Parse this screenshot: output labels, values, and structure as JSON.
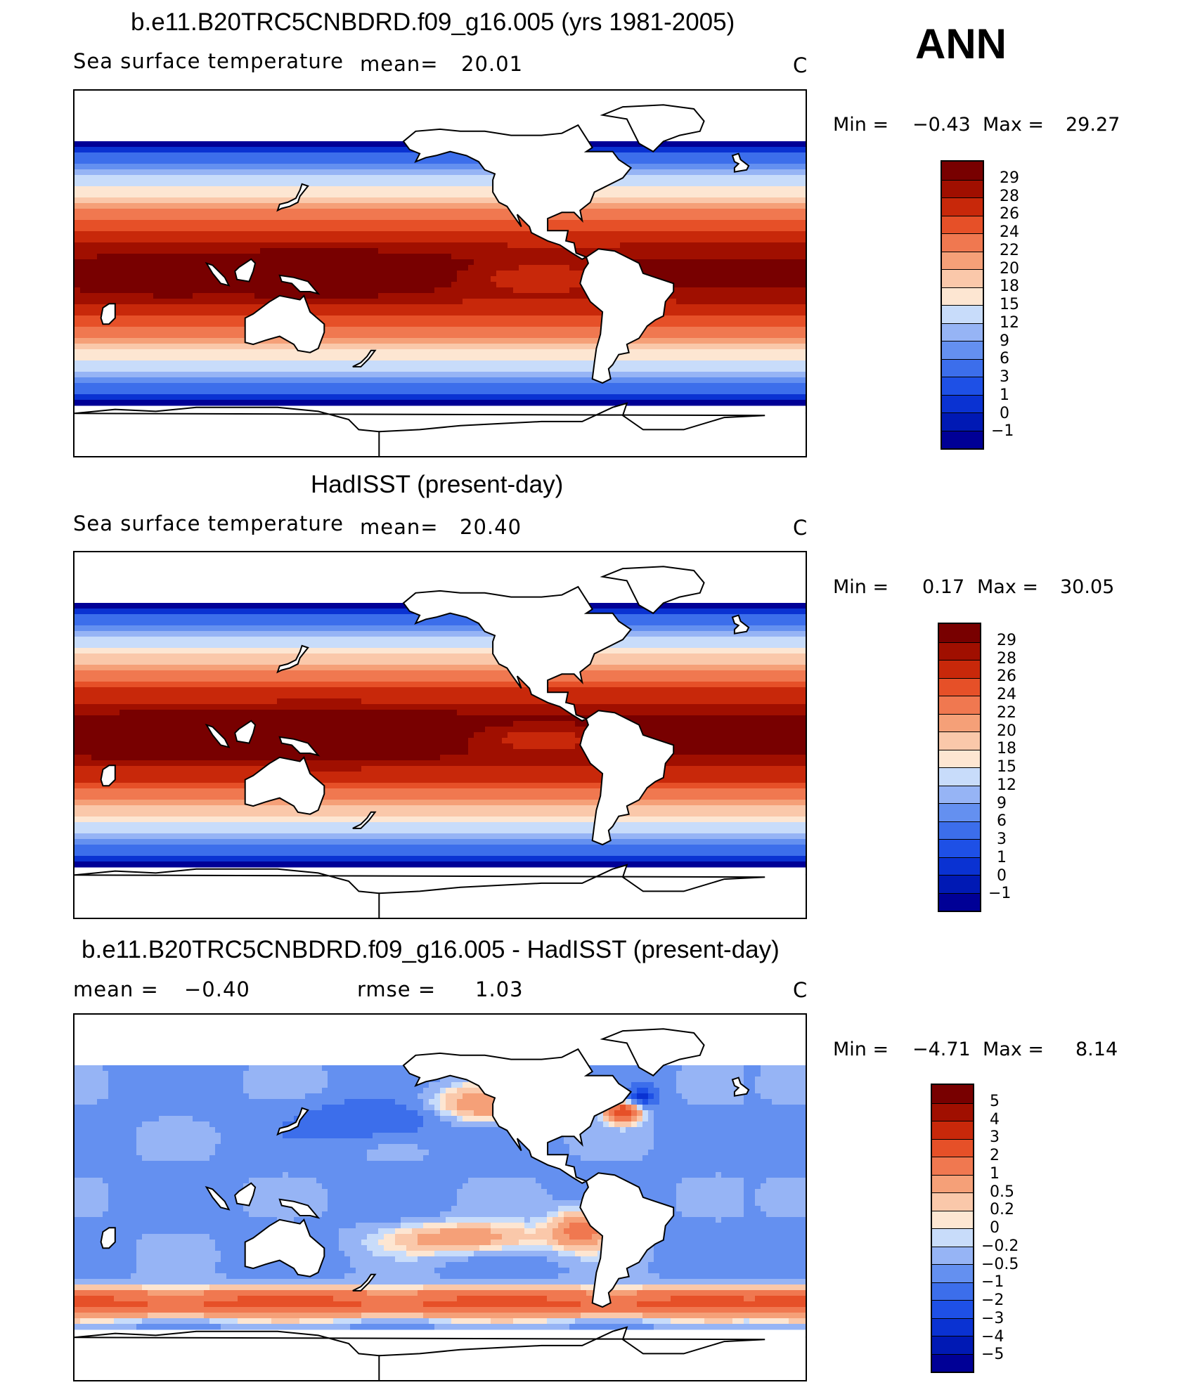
{
  "season": "ANN",
  "units": "C",
  "panels": [
    {
      "title": "b.e11.B20TRC5CNBDRD.f09_g16.005 (yrs 1981-2005)",
      "variable": "Sea surface temperature",
      "stat_label": "mean=",
      "stat_value": "20.01",
      "units": "C",
      "min_label": "Min =",
      "min_value": "−0.43",
      "max_label": "Max =",
      "max_value": "29.27",
      "legend": [
        "29",
        "28",
        "26",
        "24",
        "22",
        "20",
        "18",
        "15",
        "12",
        "9",
        "6",
        "3",
        "1",
        "0",
        "−1"
      ]
    },
    {
      "title": "HadISST (present-day)",
      "variable": "Sea surface temperature",
      "stat_label": "mean=",
      "stat_value": "20.40",
      "units": "C",
      "min_label": "Min =",
      "min_value": "0.17",
      "max_label": "Max =",
      "max_value": "30.05",
      "legend": [
        "29",
        "28",
        "26",
        "24",
        "22",
        "20",
        "18",
        "15",
        "12",
        "9",
        "6",
        "3",
        "1",
        "0",
        "−1"
      ]
    },
    {
      "title": "b.e11.B20TRC5CNBDRD.f09_g16.005 - HadISST (present-day)",
      "mean_label": "mean =",
      "mean_value": "−0.40",
      "rmse_label": "rmse =",
      "rmse_value": "1.03",
      "units": "C",
      "min_label": "Min =",
      "min_value": "−4.71",
      "max_label": "Max =",
      "max_value": "8.14",
      "legend": [
        "5",
        "4",
        "3",
        "2",
        "1",
        "0.5",
        "0.2",
        "0",
        "−0.2",
        "−0.5",
        "−1",
        "−2",
        "−3",
        "−4",
        "−5"
      ]
    }
  ],
  "palettes": {
    "sst": [
      "#000096",
      "#0019b4",
      "#0a32d2",
      "#1e50e6",
      "#3c6eeb",
      "#6490f0",
      "#96b4f5",
      "#c8dcfa",
      "#fde6d2",
      "#fac8aa",
      "#f5a078",
      "#f07850",
      "#e65028",
      "#c8280a",
      "#a00f00",
      "#780000"
    ],
    "diff": [
      "#000096",
      "#0019b4",
      "#0a32d2",
      "#1e50e6",
      "#3c6eeb",
      "#6490f0",
      "#96b4f5",
      "#c8dcfa",
      "#fde6d2",
      "#fac8aa",
      "#f5a078",
      "#f07850",
      "#e65028",
      "#c8280a",
      "#a00f00",
      "#780000"
    ]
  },
  "chart_data": [
    {
      "type": "heatmap",
      "title": "b.e11.B20TRC5CNBDRD.f09_g16.005 (yrs 1981-2005)",
      "subtitle": "Sea surface temperature",
      "units": "C",
      "mean": 20.01,
      "min": -0.43,
      "max": 29.27,
      "contour_levels": [
        -1,
        0,
        1,
        3,
        6,
        9,
        12,
        15,
        18,
        20,
        22,
        24,
        26,
        28,
        29
      ],
      "legend_placement": "right"
    },
    {
      "type": "heatmap",
      "title": "HadISST (present-day)",
      "subtitle": "Sea surface temperature",
      "units": "C",
      "mean": 20.4,
      "min": 0.17,
      "max": 30.05,
      "contour_levels": [
        -1,
        0,
        1,
        3,
        6,
        9,
        12,
        15,
        18,
        20,
        22,
        24,
        26,
        28,
        29
      ],
      "legend_placement": "right"
    },
    {
      "type": "heatmap",
      "title": "b.e11.B20TRC5CNBDRD.f09_g16.005 - HadISST (present-day)",
      "units": "C",
      "mean": -0.4,
      "rmse": 1.03,
      "min": -4.71,
      "max": 8.14,
      "contour_levels": [
        -5,
        -4,
        -3,
        -2,
        -1,
        -0.5,
        -0.2,
        0,
        0.2,
        0.5,
        1,
        2,
        3,
        4,
        5
      ],
      "legend_placement": "right"
    }
  ]
}
